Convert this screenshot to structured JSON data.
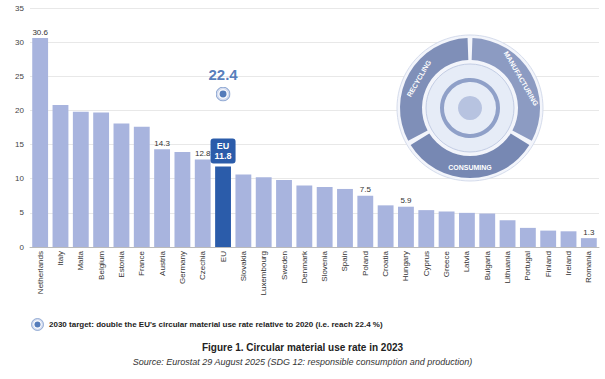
{
  "chart_data": {
    "type": "bar",
    "title": "Figure 1. Circular material use rate in 2023",
    "subtitle": "Source: Eurostat 29 August 2025 (SDG 12: responsible consumption and production)",
    "annotations": [
      "RECYCLING",
      "MANUFACTURING",
      "CONSUMING"
    ],
    "categories": [
      "Netherlands",
      "Italy",
      "Malta",
      "Belgium",
      "Estonia",
      "France",
      "Austria",
      "Germany",
      "Czechia",
      "EU",
      "Slovakia",
      "Luxembourg",
      "Sweden",
      "Denmark",
      "Slovenia",
      "Spain",
      "Poland",
      "Croatia",
      "Hungary",
      "Cyprus",
      "Greece",
      "Latvia",
      "Bulgaria",
      "Lithuania",
      "Portugal",
      "Finland",
      "Ireland",
      "Romania"
    ],
    "series": [
      {
        "type": "bar",
        "colors": [
          "#a8b4de",
          "#a8b4de",
          "#a8b4de",
          "#a8b4de",
          "#a8b4de",
          "#a8b4de",
          "#a8b4de",
          "#a8b4de",
          "#a8b4de",
          "#2b5caa",
          "#a8b4de",
          "#a8b4de",
          "#a8b4de",
          "#a8b4de",
          "#a8b4de",
          "#a8b4de",
          "#a8b4de",
          "#a8b4de",
          "#a8b4de",
          "#a8b4de",
          "#a8b4de",
          "#a8b4de",
          "#a8b4de",
          "#a8b4de",
          "#a8b4de",
          "#a8b4de",
          "#a8b4de",
          "#a8b4de"
        ],
        "values": [
          30.6,
          20.8,
          19.8,
          19.7,
          18.1,
          17.6,
          14.3,
          13.9,
          12.8,
          11.8,
          10.6,
          10.2,
          9.8,
          9.0,
          8.8,
          8.5,
          7.5,
          6.1,
          5.9,
          5.4,
          5.2,
          5.0,
          4.9,
          3.9,
          2.8,
          2.4,
          2.3,
          1.3
        ],
        "value_labels": [
          "30.6",
          null,
          null,
          null,
          null,
          null,
          "14.3",
          null,
          "12.8",
          "EU 11.8",
          null,
          null,
          null,
          null,
          null,
          null,
          "7.5",
          null,
          "5.9",
          null,
          null,
          null,
          null,
          null,
          null,
          null,
          null,
          "1.3"
        ]
      },
      {
        "name": "2030 target: double the EU's circular material use rate relative to 2020 (i.e. reach 22.4 %)",
        "type": "scatter",
        "color": "#2b5caa",
        "marker": "circle",
        "values": [
          null,
          null,
          null,
          null,
          null,
          null,
          null,
          null,
          null,
          22.4,
          null,
          null,
          null,
          null,
          null,
          null,
          null,
          null,
          null,
          null,
          null,
          null,
          null,
          null,
          null,
          null,
          null,
          null
        ],
        "value_labels": [
          null,
          null,
          null,
          null,
          null,
          null,
          null,
          null,
          null,
          "22.4",
          null,
          null,
          null,
          null,
          null,
          null,
          null,
          null,
          null,
          null,
          null,
          null,
          null,
          null,
          null,
          null,
          null,
          null
        ]
      }
    ],
    "ylim": [
      0,
      35
    ],
    "yticks": [
      0,
      5,
      10,
      15,
      20,
      25,
      30,
      35
    ],
    "grid": true,
    "legend": "bottom",
    "data_labels": true
  }
}
